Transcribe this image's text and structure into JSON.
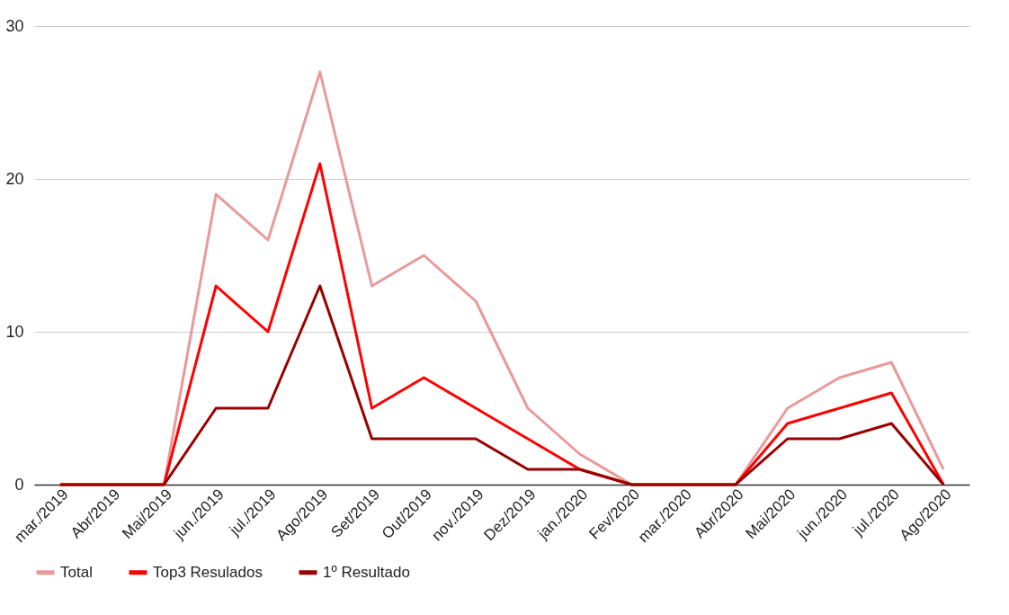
{
  "chart_data": {
    "type": "line",
    "categories": [
      "mar./2019",
      "Abr/2019",
      "Mai/2019",
      "jun./2019",
      "jul./2019",
      "Ago/2019",
      "Set/2019",
      "Out/2019",
      "nov./2019",
      "Dez/2019",
      "jan./2020",
      "Fev/2020",
      "mar./2020",
      "Abr/2020",
      "Mai/2020",
      "jun./2020",
      "jul./2020",
      "Ago/2020"
    ],
    "series": [
      {
        "name": "Total",
        "color": "#ea9999",
        "values": [
          0,
          0,
          0,
          19,
          16,
          27,
          13,
          15,
          12,
          5,
          2,
          0,
          0,
          0,
          5,
          7,
          8,
          1
        ]
      },
      {
        "name": "Top3 Resulados",
        "color": "#ff0000",
        "values": [
          0,
          0,
          0,
          13,
          10,
          21,
          5,
          7,
          5,
          3,
          1,
          0,
          0,
          0,
          4,
          5,
          6,
          0
        ]
      },
      {
        "name": "1º Resultado",
        "color": "#990000",
        "values": [
          0,
          0,
          0,
          5,
          5,
          13,
          3,
          3,
          3,
          1,
          1,
          0,
          0,
          0,
          3,
          3,
          4,
          0
        ]
      }
    ],
    "ylim": [
      0,
      30
    ],
    "yticks": [
      0,
      10,
      20,
      30
    ],
    "grid": "y",
    "legend": "bottom",
    "marker": "none",
    "line_style": "solid"
  }
}
